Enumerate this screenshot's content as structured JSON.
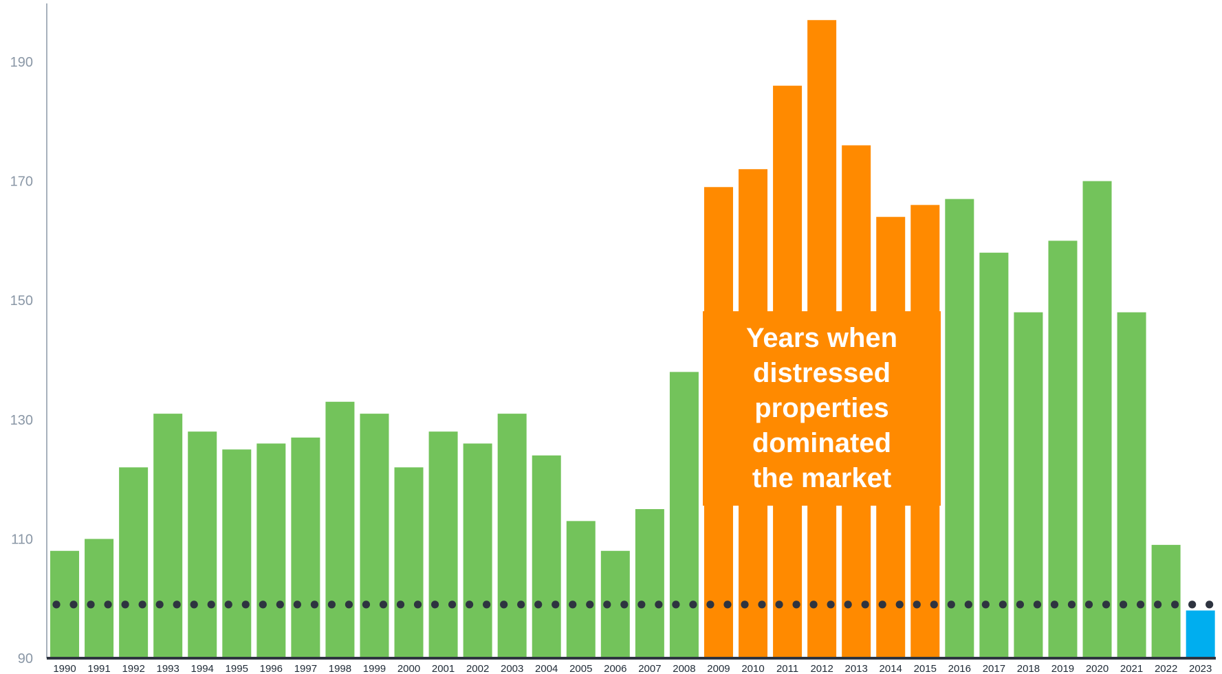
{
  "chart_data": {
    "type": "bar",
    "title": "",
    "xlabel": "",
    "ylabel": "",
    "categories": [
      "1990",
      "1991",
      "1992",
      "1993",
      "1994",
      "1995",
      "1996",
      "1997",
      "1998",
      "1999",
      "2000",
      "2001",
      "2002",
      "2003",
      "2004",
      "2005",
      "2006",
      "2007",
      "2008",
      "2009",
      "2010",
      "2011",
      "2012",
      "2013",
      "2014",
      "2015",
      "2016",
      "2017",
      "2018",
      "2019",
      "2020",
      "2021",
      "2022",
      "2023"
    ],
    "values": [
      108,
      110,
      122,
      131,
      128,
      125,
      126,
      127,
      133,
      131,
      122,
      128,
      126,
      131,
      124,
      113,
      108,
      115,
      138,
      169,
      172,
      186,
      197,
      176,
      164,
      166,
      167,
      158,
      148,
      160,
      170,
      148,
      109,
      98
    ],
    "bar_colors": {
      "default": "#73c35b",
      "highlight": "#ff8a00",
      "latest": "#00aeef"
    },
    "highlight_years": [
      "2009",
      "2010",
      "2011",
      "2012",
      "2013",
      "2014",
      "2015"
    ],
    "latest_year": "2023",
    "reference_line": {
      "value": 99,
      "style": "dotted",
      "color": "#2e3440"
    },
    "ylim": [
      90,
      200
    ],
    "yticks": [
      90,
      110,
      130,
      150,
      170,
      190
    ],
    "grid": false,
    "legend": "none",
    "annotation": {
      "text_lines": [
        "Years when",
        "distressed",
        "properties",
        "dominated",
        "the market"
      ],
      "background": "#ff8a00",
      "text_color": "#ffffff"
    }
  }
}
